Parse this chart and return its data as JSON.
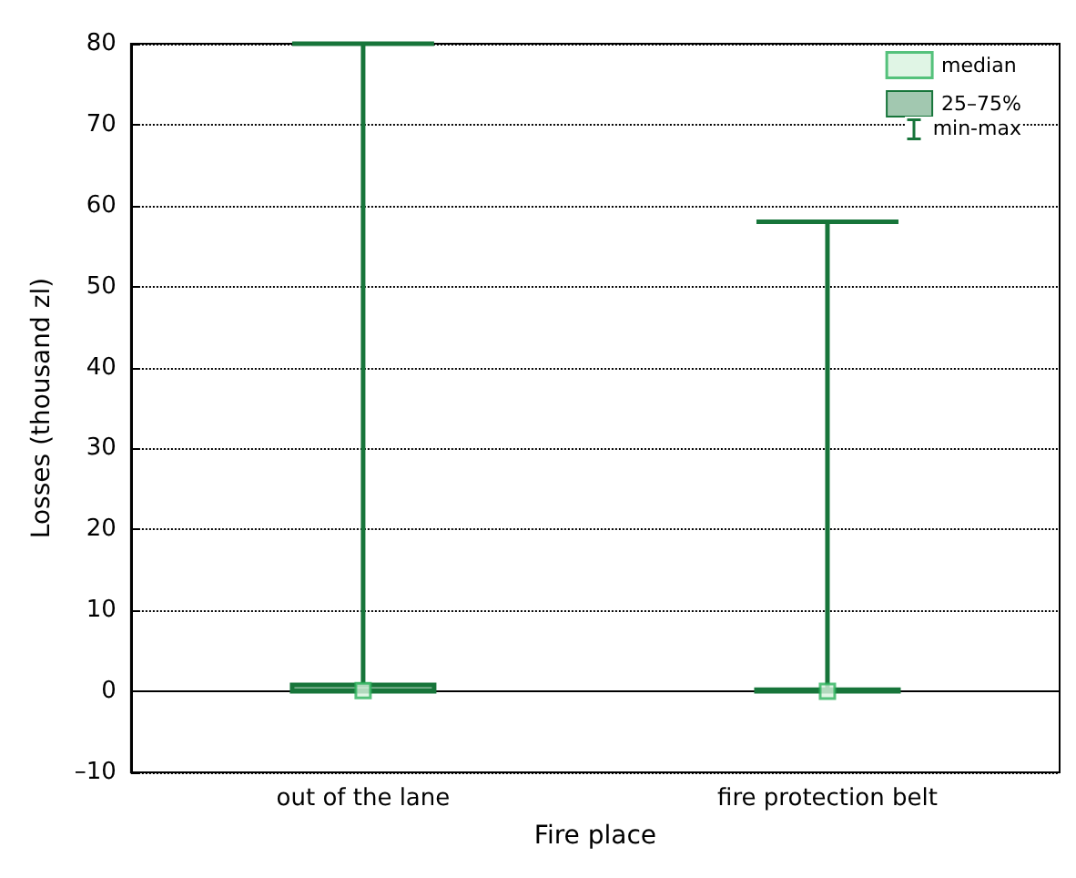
{
  "chart_data": {
    "type": "box",
    "xlabel": "Fire place",
    "ylabel": "Losses (thousand zl)",
    "categories": [
      "out of the lane",
      "fire protection belt"
    ],
    "series": [
      {
        "name": "median",
        "type": "scatter",
        "color": "#2db35d",
        "marker": "square",
        "x": [
          "out of the lane",
          "fire protection belt"
        ],
        "values": [
          0.1,
          0
        ]
      },
      {
        "name": "25–75%",
        "type": "box",
        "color": "#17753a",
        "boxes": [
          {
            "low": 0,
            "q1": 0,
            "median": 0.1,
            "q3": 0.8,
            "high": 80
          },
          {
            "low": 0,
            "q1": 0,
            "median": 0,
            "q3": 0.2,
            "high": 58
          }
        ]
      }
    ],
    "annotations": [
      "min-max"
    ],
    "ylim": [
      -10,
      80
    ],
    "yticks": [
      {
        "value": -10,
        "label": "–10"
      },
      0,
      10,
      20,
      30,
      40,
      50,
      60,
      70,
      80
    ],
    "grid": "y",
    "legend": "top right"
  }
}
